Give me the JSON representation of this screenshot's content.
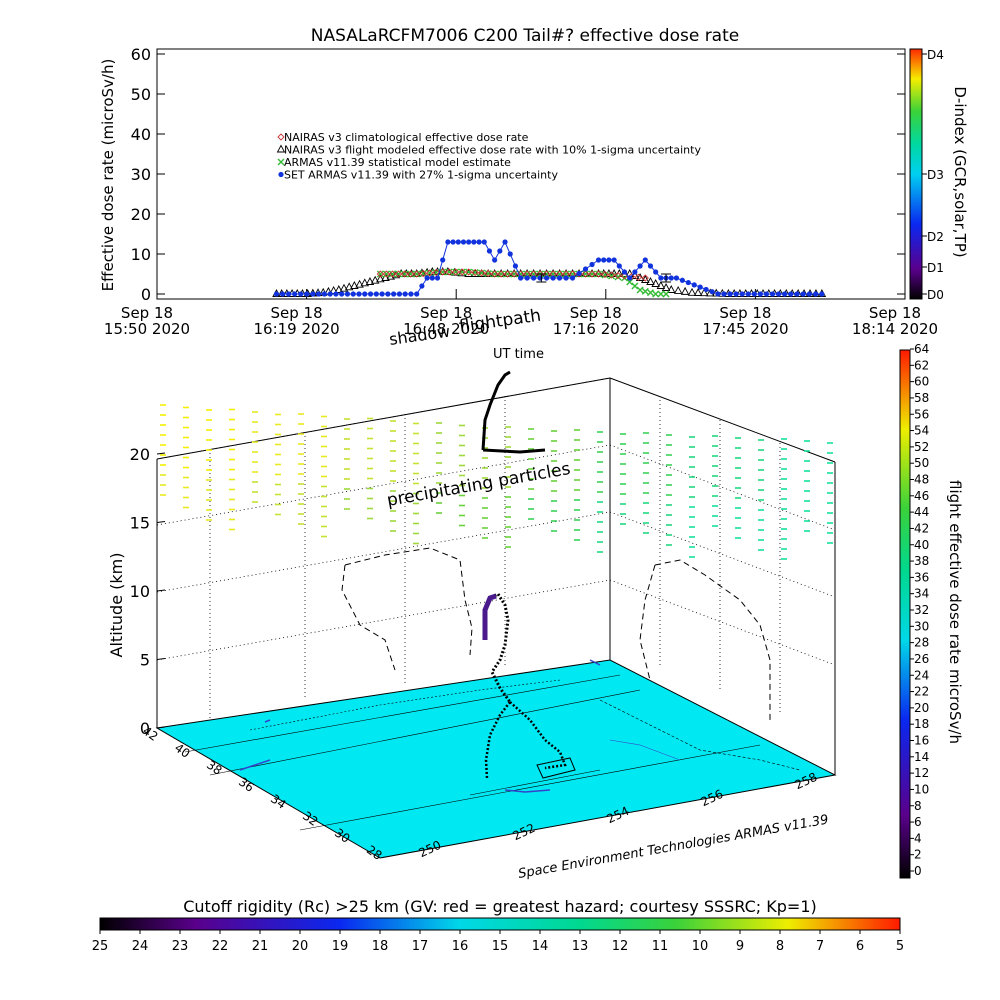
{
  "chart_data": [
    {
      "type": "scatter",
      "title": "NASALaRCFM7006  C200 Tail#? effective dose rate",
      "ylabel": "Effective dose rate (microSv/h)",
      "ylim": [
        0,
        60
      ],
      "yticks": [
        "0",
        "10",
        "20",
        "30",
        "40",
        "50",
        "60"
      ],
      "x_ticks": [
        {
          "line1": "Sep 18",
          "line2": "15:50 2020"
        },
        {
          "line1": "Sep 18",
          "line2": "16:19 2020"
        },
        {
          "line1": "Sep 18",
          "line2": "16:48 2020"
        },
        {
          "line1": "Sep 18",
          "line2": "17:16 2020"
        },
        {
          "line1": "Sep 18",
          "line2": "17:45 2020"
        },
        {
          "line1": "Sep 18",
          "line2": "18:14 2020"
        }
      ],
      "x_range": [
        "15:50",
        "18:14"
      ],
      "grid": false,
      "legend_position": "center",
      "legend": [
        {
          "label": "NAIRAS v3 climatological effective dose rate",
          "color": "#cc3333",
          "marker": "diamond"
        },
        {
          "label": "NAIRAS v3 flight modeled effective dose rate with 10% 1-sigma uncertainty",
          "color": "#000000",
          "marker": "triangle"
        },
        {
          "label": "ARMAS v11.39 statistical model estimate",
          "color": "#33bb33",
          "marker": "x"
        },
        {
          "label": "SET ARMAS v11.39 with 27% 1-sigma uncertainty",
          "color": "#1133dd",
          "marker": "circle"
        }
      ],
      "colorbar": {
        "title": "D-index (GCR,solar,TP)",
        "labels": [
          "D0",
          "D1",
          "D2",
          "D3",
          "D4"
        ],
        "label_values": [
          0,
          1,
          2,
          3,
          4
        ]
      },
      "series": [
        {
          "name": "NAIRAS v3 flight modeled effective dose rate with 10% 1-sigma uncertainty",
          "x": [
            "16:13",
            "16:16",
            "16:19",
            "16:22",
            "16:25",
            "16:28",
            "16:31",
            "16:34",
            "16:37",
            "16:40",
            "16:43",
            "16:46",
            "16:50",
            "16:55",
            "17:00",
            "17:05",
            "17:10",
            "17:15",
            "17:18",
            "17:21",
            "17:23",
            "17:25",
            "17:27",
            "17:29",
            "17:33",
            "17:40",
            "17:50",
            "17:58"
          ],
          "y": [
            0,
            0,
            0,
            0.3,
            1,
            2,
            3,
            4,
            5,
            5,
            5.5,
            5.5,
            5,
            5,
            5,
            5,
            5,
            5,
            5,
            5,
            4,
            3,
            2,
            1,
            0.3,
            0,
            0,
            0
          ]
        },
        {
          "name": "ARMAS v11.39 statistical model estimate",
          "x": [
            "16:33",
            "16:40",
            "16:45",
            "16:50",
            "16:55",
            "17:00",
            "17:05",
            "17:10",
            "17:15",
            "17:20",
            "17:23",
            "17:26",
            "17:28"
          ],
          "y": [
            5,
            5,
            5.5,
            5.5,
            5,
            5,
            5,
            5,
            5,
            4,
            1,
            0,
            0
          ]
        },
        {
          "name": "NAIRAS v3 climatological effective dose rate",
          "x": [
            "16:33",
            "16:40",
            "16:45",
            "16:50",
            "16:55",
            "17:00",
            "17:05",
            "17:10",
            "17:15",
            "17:20",
            "17:24"
          ],
          "y": [
            5,
            5,
            5.5,
            5.5,
            5,
            5,
            5,
            5,
            5,
            4.5,
            4
          ]
        },
        {
          "name": "SET ARMAS v11.39 with 27% 1-sigma uncertainty",
          "x": [
            "16:13",
            "16:20",
            "16:30",
            "16:40",
            "16:42",
            "16:44",
            "16:46",
            "16:48",
            "16:50",
            "16:53",
            "16:55",
            "16:57",
            "17:00",
            "17:05",
            "17:10",
            "17:15",
            "17:18",
            "17:21",
            "17:24",
            "17:27",
            "17:30",
            "17:38",
            "17:45",
            "17:52",
            "17:58"
          ],
          "y": [
            0,
            0,
            0,
            0,
            4,
            4,
            13,
            13,
            13,
            13,
            8.5,
            13,
            4,
            4,
            4,
            8.5,
            8.5,
            4,
            8.5,
            4,
            4,
            0,
            0,
            0,
            0
          ]
        }
      ]
    },
    {
      "type": "scatter",
      "zlabel": "Altitude (km)",
      "zticks": [
        "0",
        "5",
        "10",
        "15",
        "20"
      ],
      "lat_ticks": [
        "42",
        "40",
        "38",
        "36",
        "34",
        "32",
        "30",
        "28"
      ],
      "lon_ticks": [
        "250",
        "252",
        "254",
        "256",
        "258"
      ],
      "annotations": [
        "shadow",
        "flightpath",
        "UT time",
        "precipitating particles"
      ],
      "footer": "Space Environment Technologies ARMAS v11.39",
      "colorbar": {
        "title": "flight effective dose rate microSv/h",
        "range": [
          0,
          64
        ],
        "labels": [
          "0",
          "2",
          "4",
          "6",
          "8",
          "10",
          "12",
          "14",
          "16",
          "18",
          "20",
          "22",
          "24",
          "26",
          "28",
          "30",
          "32",
          "34",
          "36",
          "38",
          "40",
          "42",
          "44",
          "46",
          "48",
          "50",
          "52",
          "54",
          "56",
          "58",
          "60",
          "62",
          "64"
        ]
      },
      "bottom_colorbar": {
        "title": "Cutoff rigidity (Rc) >25 km (GV: red = greatest hazard; courtesy SSSRC; Kp=1)",
        "labels": [
          "25",
          "24",
          "23",
          "22",
          "21",
          "20",
          "19",
          "18",
          "17",
          "16",
          "15",
          "14",
          "13",
          "12",
          "11",
          "10",
          "9",
          "8",
          "7",
          "6",
          "5"
        ]
      },
      "colors": {
        "ground": "#00e8f2"
      }
    }
  ]
}
